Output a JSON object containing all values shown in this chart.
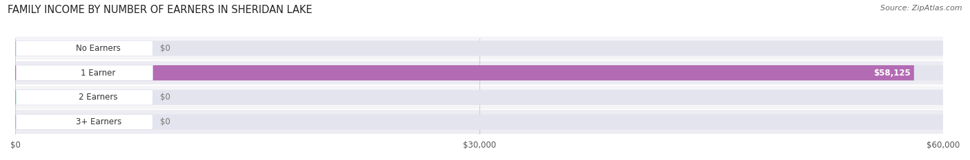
{
  "title": "FAMILY INCOME BY NUMBER OF EARNERS IN SHERIDAN LAKE",
  "source": "Source: ZipAtlas.com",
  "categories": [
    "No Earners",
    "1 Earner",
    "2 Earners",
    "3+ Earners"
  ],
  "values": [
    0,
    58125,
    0,
    0
  ],
  "bar_colors": [
    "#9db9d9",
    "#b36bb3",
    "#4ec9b4",
    "#a9a9d9"
  ],
  "row_bg_colors": [
    "#f5f5f8",
    "#ececf2",
    "#f5f5f8",
    "#ececf2"
  ],
  "bar_bg_color": "#e4e4ee",
  "background_color": "#ffffff",
  "xlim": [
    0,
    60000
  ],
  "xticks": [
    0,
    30000,
    60000
  ],
  "xtick_labels": [
    "$0",
    "$30,000",
    "$60,000"
  ],
  "value_labels": [
    "$0",
    "$58,125",
    "$0",
    "$0"
  ],
  "figsize": [
    14.06,
    2.33
  ],
  "dpi": 100
}
